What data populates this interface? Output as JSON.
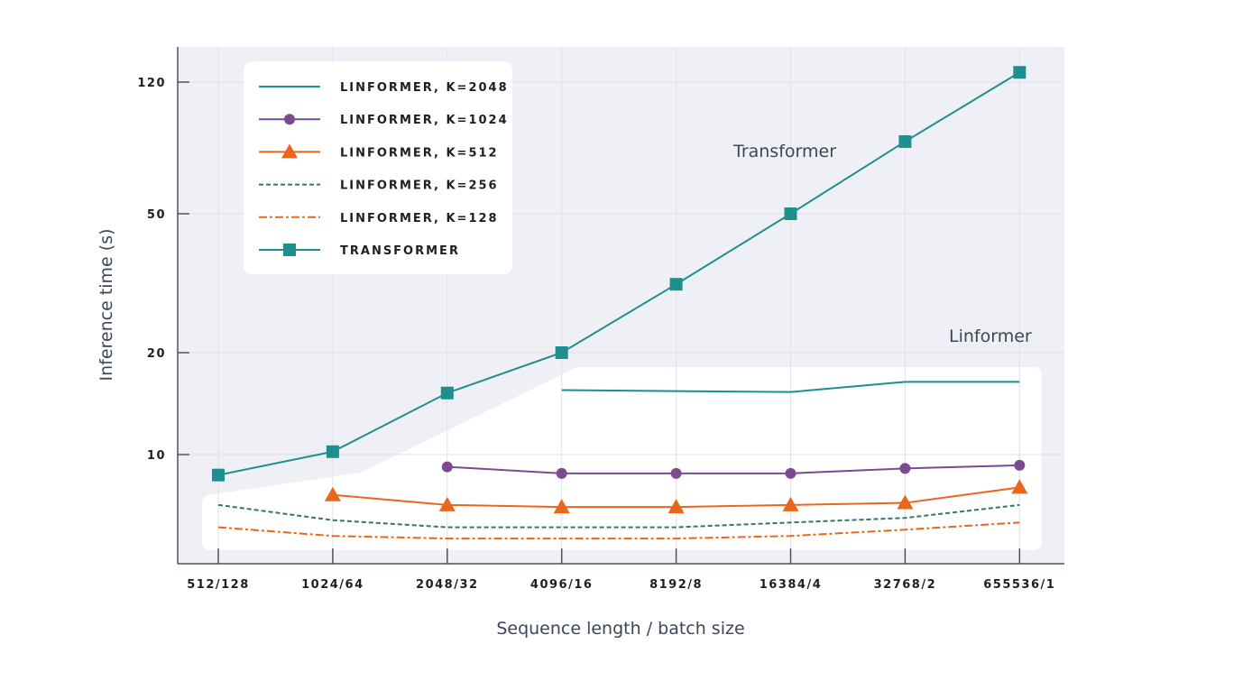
{
  "chart_data": {
    "type": "line",
    "title": "",
    "xlabel": "Sequence length / batch size",
    "ylabel": "Inference time (s)",
    "yscale": "log",
    "ylim": [
      4.75,
      140
    ],
    "yticks": [
      10,
      20,
      50,
      120
    ],
    "grid": true,
    "legend_position": "top-left",
    "categories": [
      "512/128",
      "1024/64",
      "2048/32",
      "4096/16",
      "8192/8",
      "16384/4",
      "32768/2",
      "655536/1"
    ],
    "series": [
      {
        "name": "LINFORMER, K=2048",
        "color": "#1e8f8f",
        "style": "solid",
        "marker": "none",
        "values": [
          null,
          null,
          null,
          15.5,
          15.4,
          15.3,
          16.4,
          16.4
        ]
      },
      {
        "name": "LINFORMER, K=1024",
        "color": "#7b4a8f",
        "style": "solid",
        "marker": "circle",
        "values": [
          null,
          null,
          9.2,
          8.8,
          8.8,
          8.8,
          9.1,
          9.3
        ]
      },
      {
        "name": "LINFORMER, K=512",
        "color": "#e8671c",
        "style": "solid",
        "marker": "triangle",
        "values": [
          null,
          7.6,
          7.1,
          7.0,
          7.0,
          7.1,
          7.2,
          8.0
        ]
      },
      {
        "name": "LINFORMER, K=256",
        "color": "#2f7a5e",
        "style": "dashed",
        "marker": "none",
        "values": [
          7.1,
          6.4,
          6.1,
          6.1,
          6.1,
          6.3,
          6.5,
          7.1
        ]
      },
      {
        "name": "LINFORMER, K=128",
        "color": "#e8671c",
        "style": "dashdot",
        "marker": "none",
        "values": [
          6.1,
          5.75,
          5.65,
          5.65,
          5.65,
          5.75,
          6.0,
          6.3
        ]
      },
      {
        "name": "TRANSFORMER",
        "color": "#1e8f8f",
        "style": "solid",
        "marker": "square",
        "values": [
          8.7,
          10.2,
          15.2,
          20,
          31.4,
          50,
          80.8,
          128
        ]
      }
    ],
    "annotations": [
      "Transformer",
      "Linformer"
    ]
  }
}
